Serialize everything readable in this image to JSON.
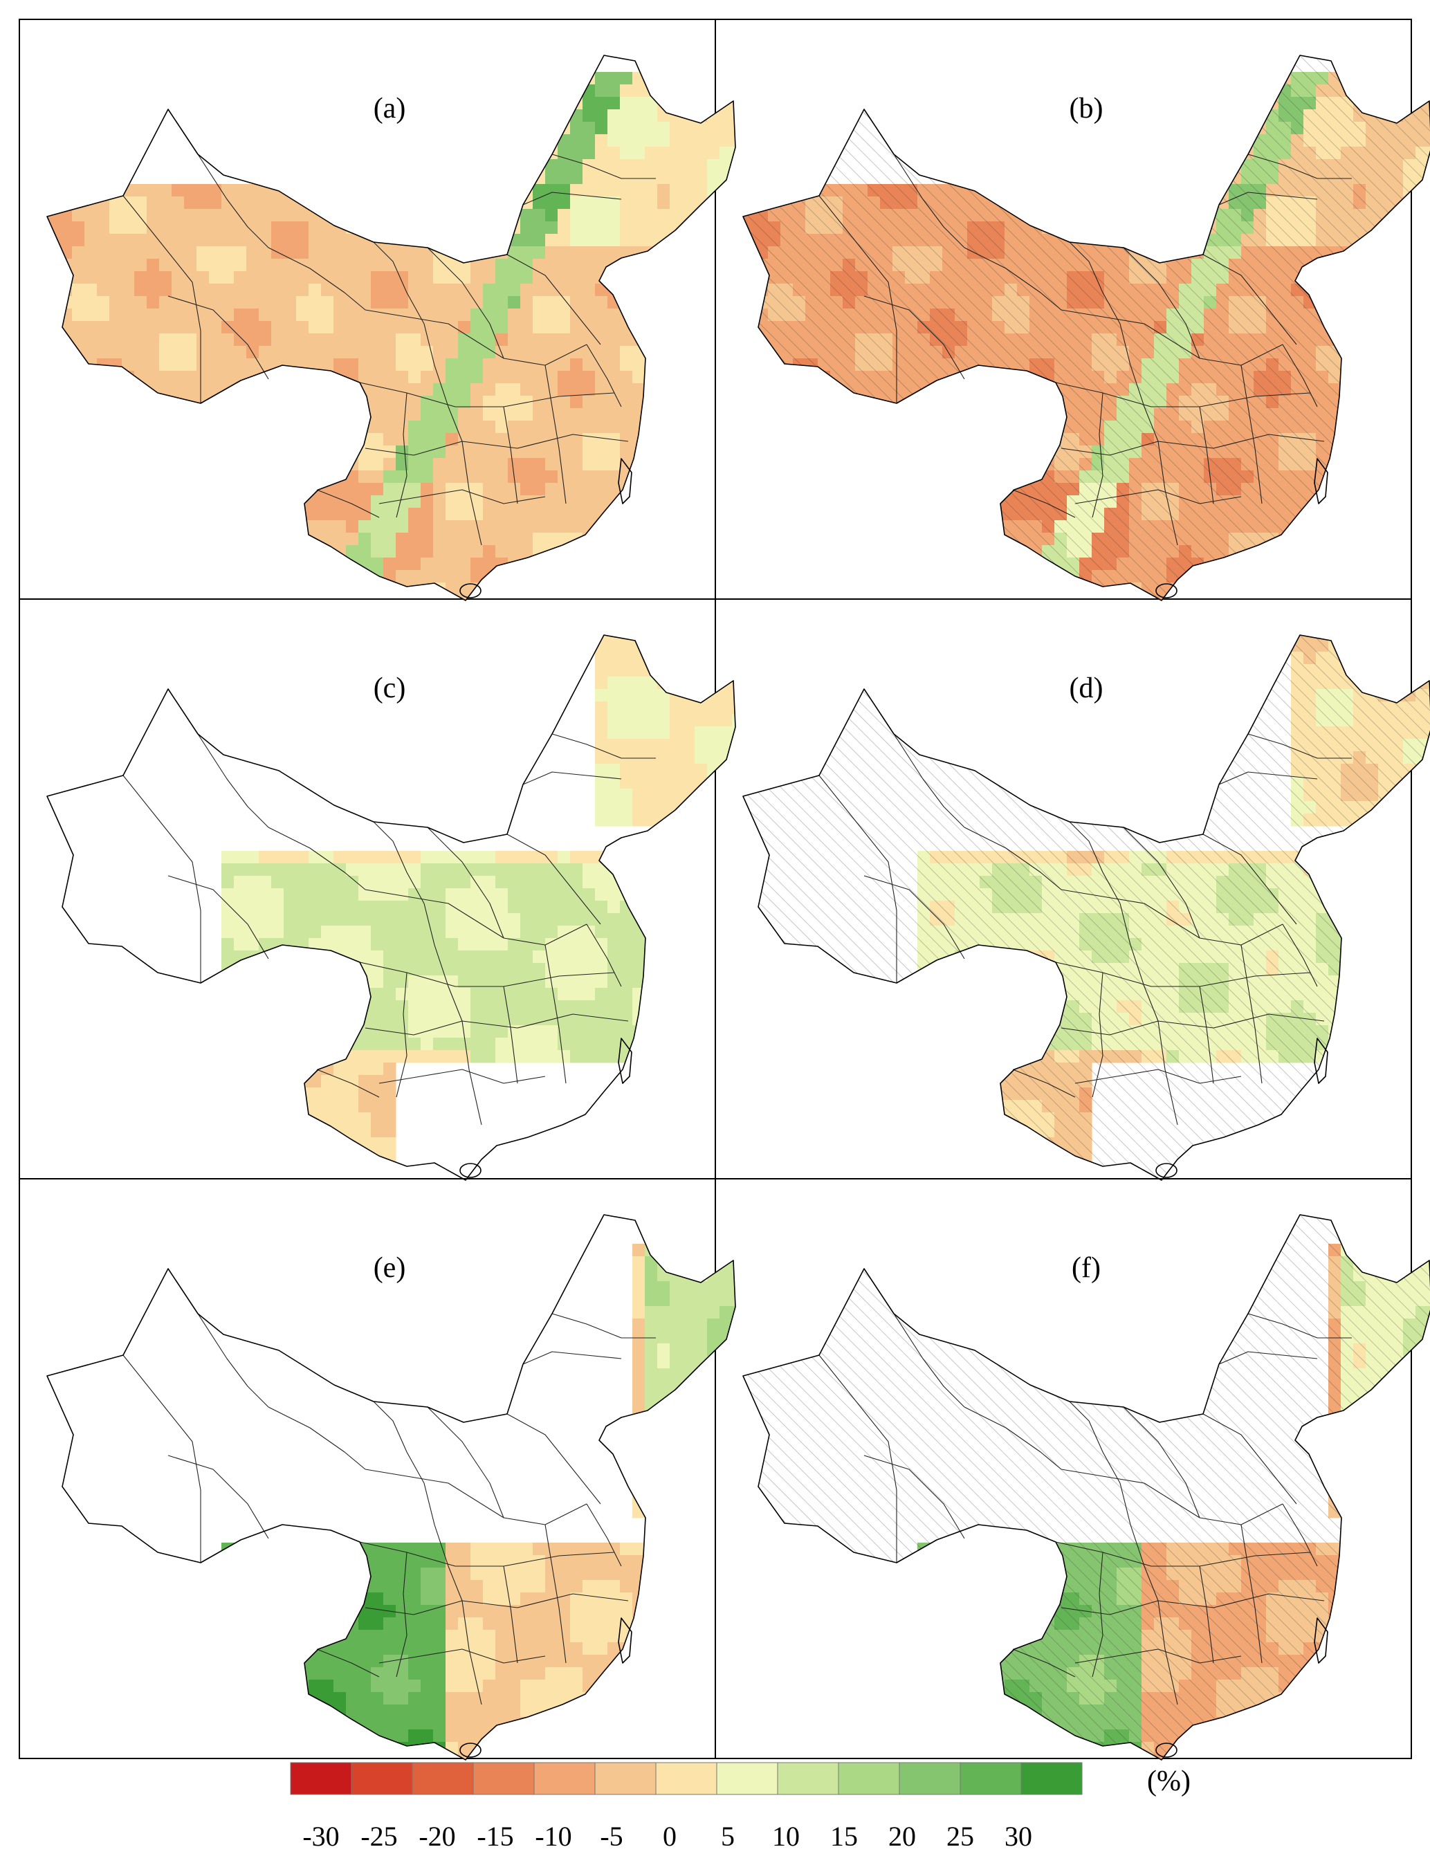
{
  "panels": [
    {
      "label": "(a)",
      "pattern": "grain",
      "mean": -5,
      "hatched": false
    },
    {
      "label": "(b)",
      "pattern": "grain",
      "mean": -10,
      "hatched": true
    },
    {
      "label": "(c)",
      "pattern": "north",
      "mean": 2,
      "hatched": false
    },
    {
      "label": "(d)",
      "pattern": "north",
      "mean": 0,
      "hatched": true
    },
    {
      "label": "(e)",
      "pattern": "south",
      "mean": -3,
      "hatched": false
    },
    {
      "label": "(f)",
      "pattern": "south",
      "mean": -8,
      "hatched": true
    }
  ],
  "colorbar": {
    "unit": "(%)",
    "ticks": [
      "-30",
      "-25",
      "-20",
      "-15",
      "-10",
      "-5",
      "0",
      "5",
      "10",
      "15",
      "20",
      "25",
      "30"
    ],
    "colors": [
      "#c8191b",
      "#d8432c",
      "#e0623c",
      "#e98456",
      "#f1a673",
      "#f6c690",
      "#fbe3a9",
      "#eef6bb",
      "#cce79d",
      "#aad885",
      "#86c56f",
      "#62b454",
      "#3a9c34"
    ]
  },
  "colors": {
    "frame": "#000000",
    "background": "#ffffff"
  }
}
